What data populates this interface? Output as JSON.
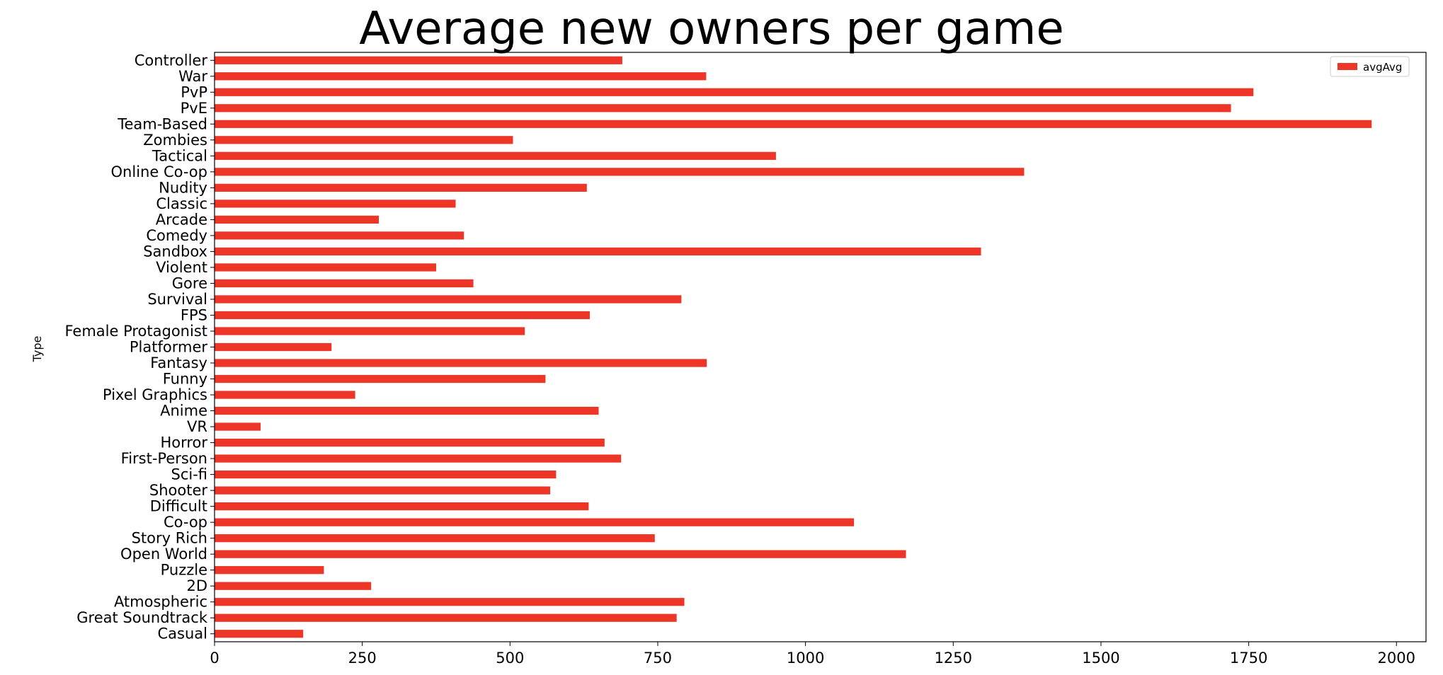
{
  "chart_data": {
    "type": "bar",
    "orientation": "horizontal",
    "title": "Average new owners per game",
    "xlabel": "",
    "ylabel": "Type",
    "xlim": [
      0,
      2050
    ],
    "xticks": [
      0,
      250,
      500,
      750,
      1000,
      1250,
      1500,
      1750,
      2000
    ],
    "grid": false,
    "legend": {
      "position": "top-right",
      "entries": [
        "avgAvg"
      ]
    },
    "colors": {
      "bar": "#ee3628"
    },
    "categories": [
      "Casual",
      "Great Soundtrack",
      "Atmospheric",
      "2D",
      "Puzzle",
      "Open World",
      "Story Rich",
      "Co-op",
      "Difficult",
      "Shooter",
      "Sci-fi",
      "First-Person",
      "Horror",
      "VR",
      "Anime",
      "Pixel Graphics",
      "Funny",
      "Fantasy",
      "Platformer",
      "Female Protagonist",
      "FPS",
      "Survival",
      "Gore",
      "Violent",
      "Sandbox",
      "Comedy",
      "Arcade",
      "Classic",
      "Nudity",
      "Online Co-op",
      "Tactical",
      "Zombies",
      "Team-Based",
      "PvE",
      "PvP",
      "War",
      "Controller"
    ],
    "series": [
      {
        "name": "avgAvg",
        "values": [
          150,
          782,
          795,
          265,
          185,
          1170,
          745,
          1082,
          633,
          568,
          578,
          688,
          660,
          78,
          650,
          238,
          560,
          833,
          198,
          525,
          635,
          790,
          438,
          375,
          1297,
          422,
          278,
          408,
          630,
          1370,
          950,
          505,
          1958,
          1720,
          1758,
          832,
          690
        ]
      }
    ]
  }
}
